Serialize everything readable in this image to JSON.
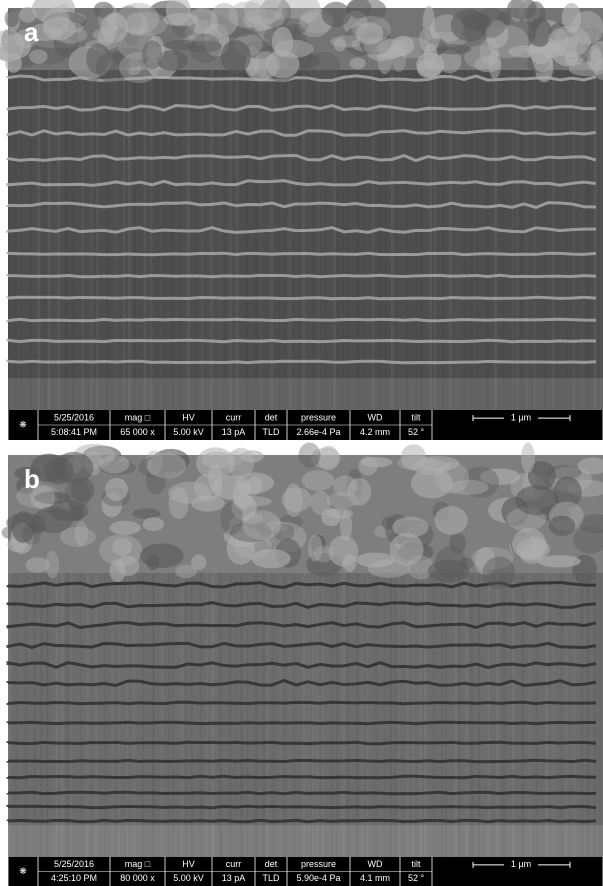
{
  "panels": [
    {
      "label": "a",
      "databar": {
        "fields": [
          {
            "top": "5/25/2016",
            "bottom": "5:08:41 PM"
          },
          {
            "top": "mag □",
            "bottom": "65 000 x"
          },
          {
            "top": "HV",
            "bottom": "5.00 kV"
          },
          {
            "top": "curr",
            "bottom": "13 pA"
          },
          {
            "top": "det",
            "bottom": "TLD"
          },
          {
            "top": "pressure",
            "bottom": "2.66e-4 Pa"
          },
          {
            "top": "WD",
            "bottom": "4.2 mm"
          },
          {
            "top": "tilt",
            "bottom": "52 °"
          }
        ],
        "scale_bar": "1 µm"
      }
    },
    {
      "label": "b",
      "databar": {
        "fields": [
          {
            "top": "5/25/2016",
            "bottom": "4:25:10 PM"
          },
          {
            "top": "mag □",
            "bottom": "80 000 x"
          },
          {
            "top": "HV",
            "bottom": "5.00 kV"
          },
          {
            "top": "curr",
            "bottom": "13 pA"
          },
          {
            "top": "det",
            "bottom": "TLD"
          },
          {
            "top": "pressure",
            "bottom": "5.90e-4 Pa"
          },
          {
            "top": "WD",
            "bottom": "4.1 mm"
          },
          {
            "top": "tilt",
            "bottom": "52 °"
          }
        ],
        "scale_bar": "1 µm"
      }
    }
  ]
}
